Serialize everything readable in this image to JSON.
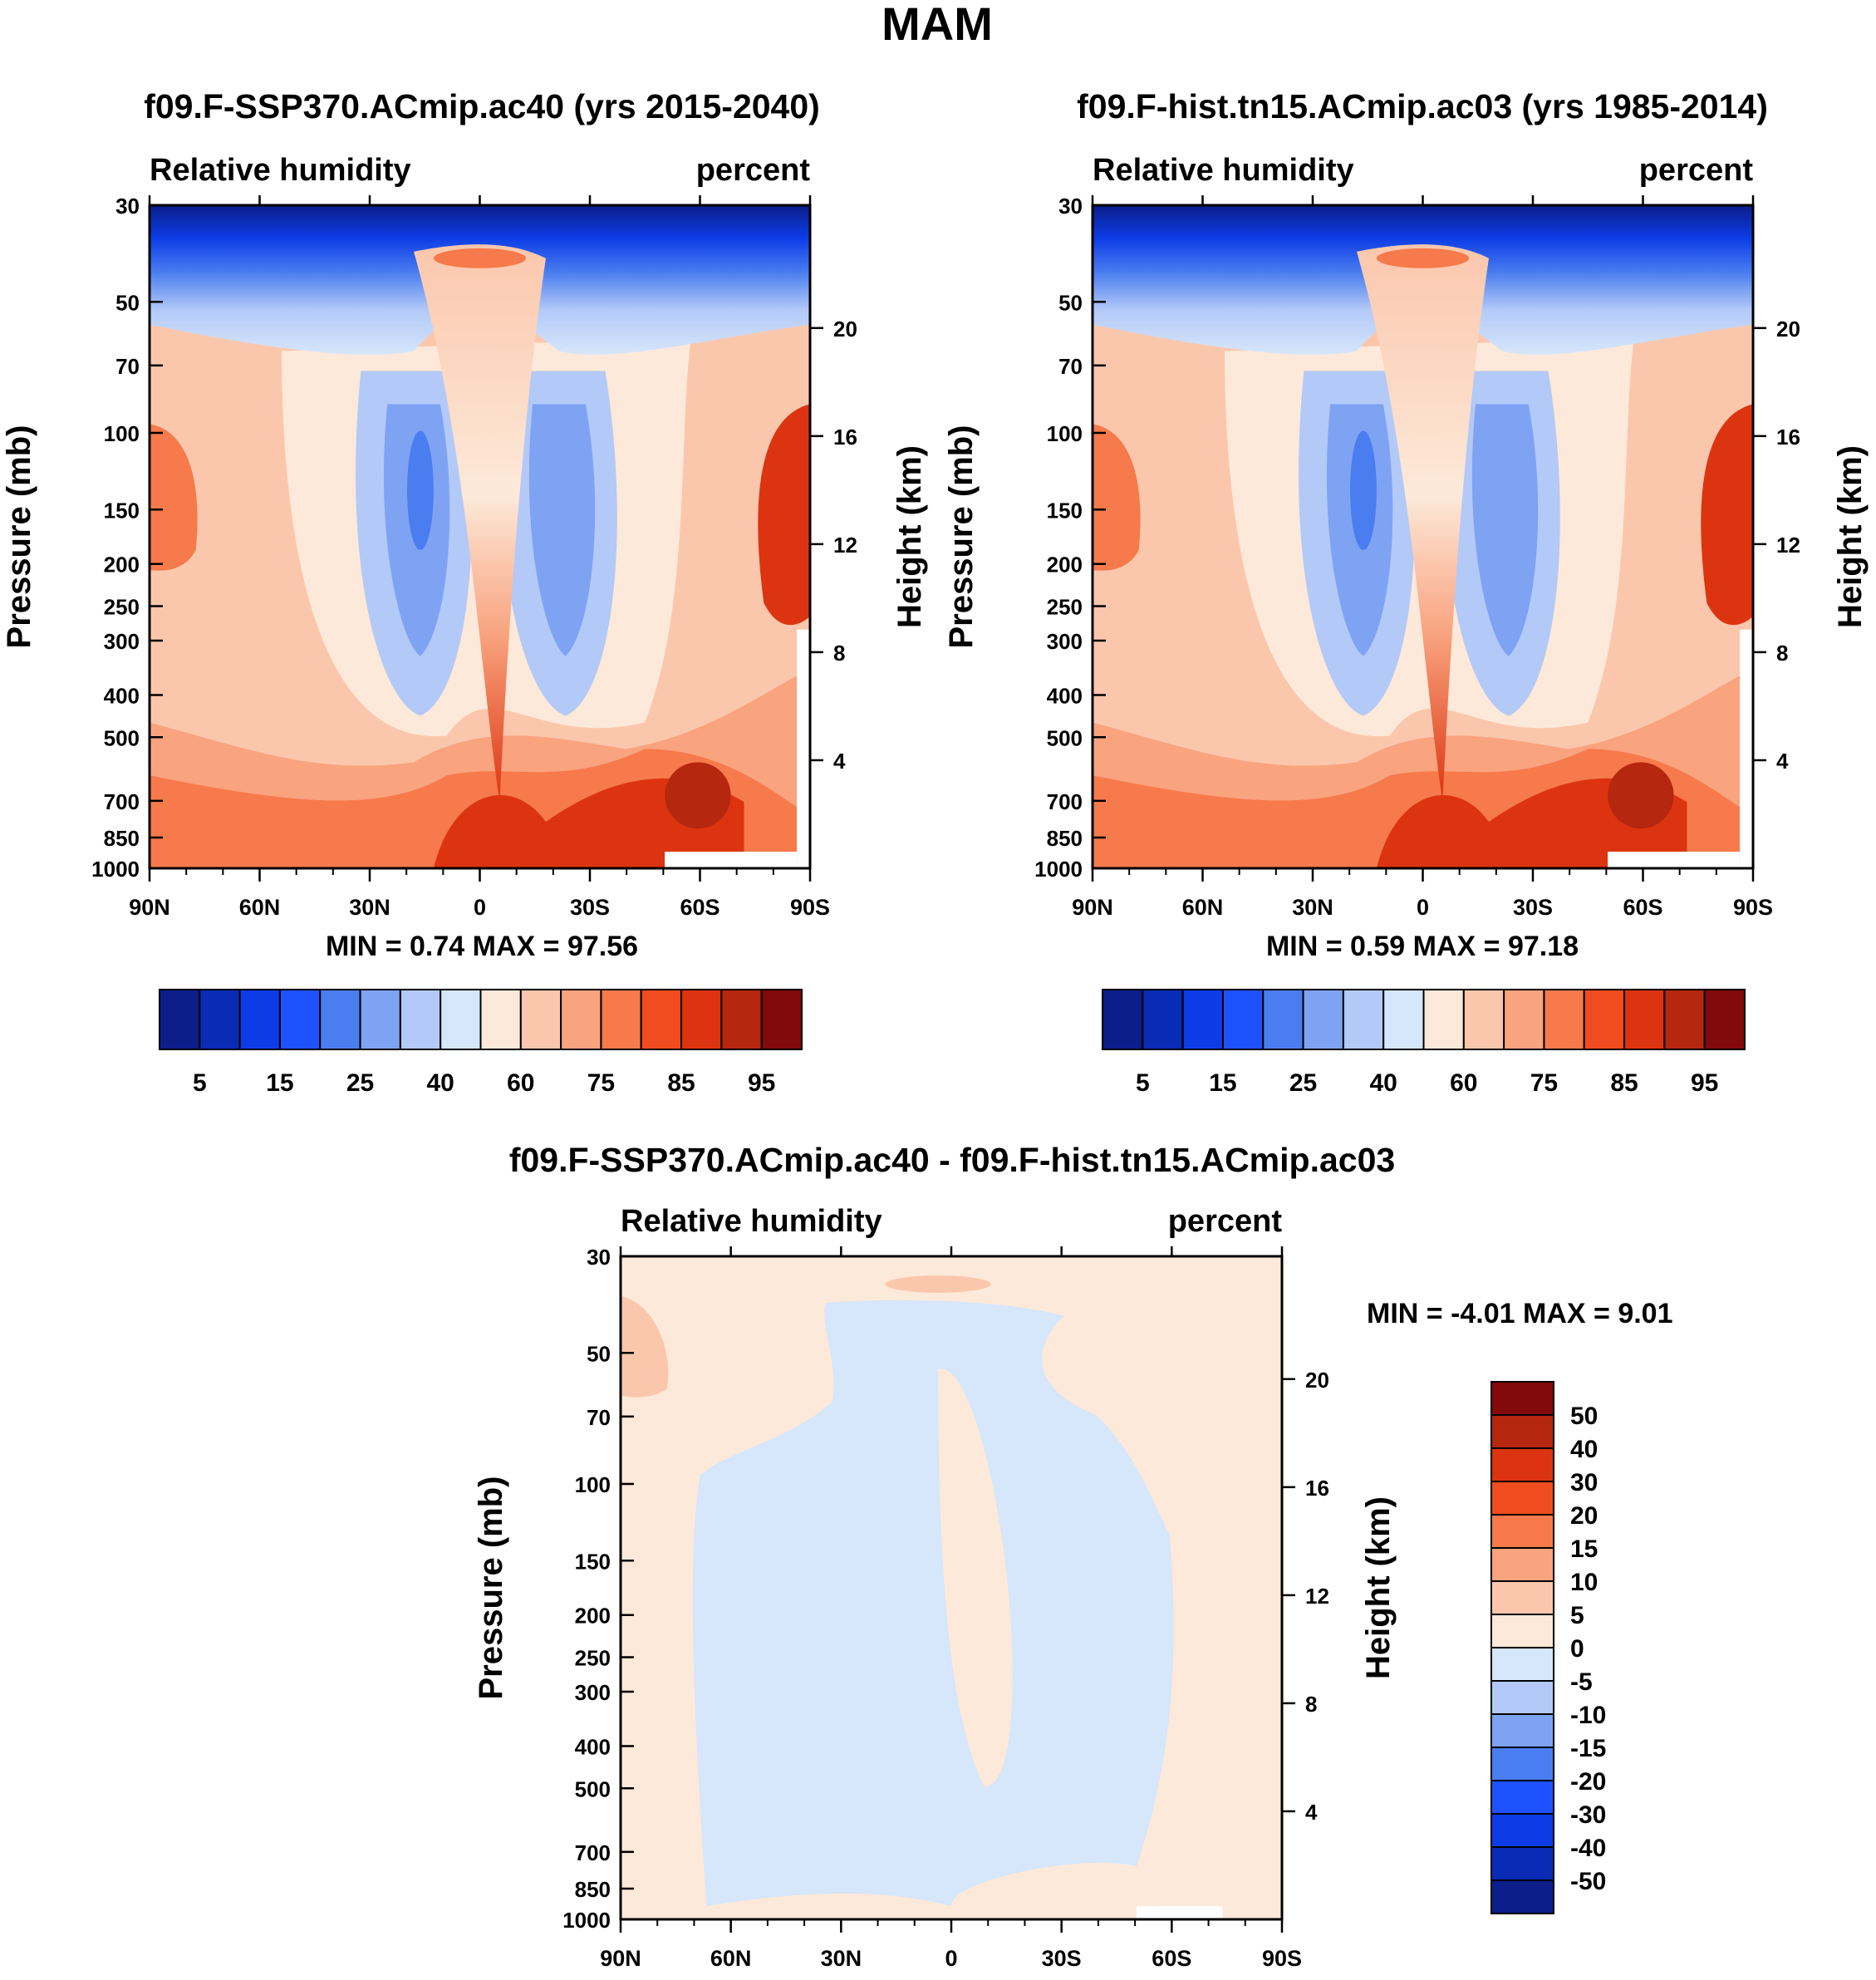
{
  "figure_title": "MAM",
  "colors": {
    "abs_palette": [
      "#0b1e8a",
      "#0a2bb5",
      "#0d3ce6",
      "#1f52ff",
      "#4a7df0",
      "#7fa3f3",
      "#b3c9f8",
      "#d6e6fb",
      "#fde9d9",
      "#fbc7ac",
      "#f9a37f",
      "#f67a4b",
      "#f04c1f",
      "#dc3410",
      "#b5270e",
      "#820a0a"
    ],
    "diff_palette": [
      "#0b1e8a",
      "#0a2bb5",
      "#0d3ce6",
      "#1f52ff",
      "#4a7df0",
      "#7fa3f3",
      "#b3c9f8",
      "#d6e6fb",
      "#fde9d9",
      "#fbc7ac",
      "#f9a37f",
      "#f67a4b",
      "#f04c1f",
      "#dc3410",
      "#b5270e",
      "#820a0a"
    ]
  },
  "chart_data": [
    {
      "type": "heatmap",
      "title": "f09.F-SSP370.ACmip.ac40 (yrs 2015-2040)",
      "variable": "Relative humidity",
      "units": "percent",
      "ylabel": "Pressure (mb)",
      "ylabel_right": "Height (km)",
      "x_ticks": [
        "90N",
        "60N",
        "30N",
        "0",
        "30S",
        "60S",
        "90S"
      ],
      "y_ticks": [
        30,
        50,
        70,
        100,
        150,
        200,
        250,
        300,
        400,
        500,
        700,
        850,
        1000
      ],
      "height_ticks": [
        20,
        16,
        12,
        8,
        4
      ],
      "ylim": [
        30,
        1000
      ],
      "stats": "MIN =   0.74  MAX =  97.56",
      "colorbar_levels": [
        5,
        10,
        15,
        20,
        25,
        30,
        40,
        50,
        60,
        70,
        75,
        80,
        85,
        90,
        95
      ],
      "colorbar_labels": [
        "5",
        "15",
        "25",
        "40",
        "60",
        "75",
        "85",
        "95"
      ]
    },
    {
      "type": "heatmap",
      "title": "f09.F-hist.tn15.ACmip.ac03 (yrs 1985-2014)",
      "variable": "Relative humidity",
      "units": "percent",
      "ylabel": "Pressure (mb)",
      "ylabel_right": "Height (km)",
      "x_ticks": [
        "90N",
        "60N",
        "30N",
        "0",
        "30S",
        "60S",
        "90S"
      ],
      "y_ticks": [
        30,
        50,
        70,
        100,
        150,
        200,
        250,
        300,
        400,
        500,
        700,
        850,
        1000
      ],
      "height_ticks": [
        20,
        16,
        12,
        8,
        4
      ],
      "ylim": [
        30,
        1000
      ],
      "stats": "MIN =   0.59  MAX =  97.18",
      "colorbar_levels": [
        5,
        10,
        15,
        20,
        25,
        30,
        40,
        50,
        60,
        70,
        75,
        80,
        85,
        90,
        95
      ],
      "colorbar_labels": [
        "5",
        "15",
        "25",
        "40",
        "60",
        "75",
        "85",
        "95"
      ]
    },
    {
      "type": "heatmap",
      "title": "f09.F-SSP370.ACmip.ac40 - f09.F-hist.tn15.ACmip.ac03",
      "variable": "Relative humidity",
      "units": "percent",
      "ylabel": "Pressure (mb)",
      "ylabel_right": "Height (km)",
      "x_ticks": [
        "90N",
        "60N",
        "30N",
        "0",
        "30S",
        "60S",
        "90S"
      ],
      "y_ticks": [
        30,
        50,
        70,
        100,
        150,
        200,
        250,
        300,
        400,
        500,
        700,
        850,
        1000
      ],
      "height_ticks": [
        20,
        16,
        12,
        8,
        4
      ],
      "ylim": [
        30,
        1000
      ],
      "stats": "MIN =  -4.01  MAX =   9.01",
      "colorbar_labels": [
        "50",
        "40",
        "30",
        "20",
        "15",
        "10",
        "5",
        "0",
        "-5",
        "-10",
        "-15",
        "-20",
        "-30",
        "-40",
        "-50"
      ]
    }
  ]
}
